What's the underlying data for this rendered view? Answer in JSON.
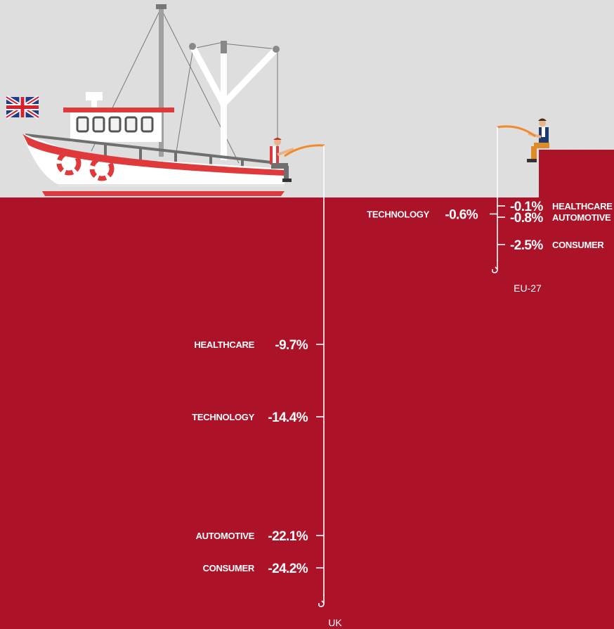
{
  "colors": {
    "sea": "#ad1328",
    "sky": "#dedede",
    "line": "#ffffff",
    "rod": "#f08a2c"
  },
  "chart_data": {
    "type": "dot-line",
    "series": [
      {
        "name": "UK",
        "points": [
          {
            "category": "HEALTHCARE",
            "value": -9.7,
            "label": "-9.7%"
          },
          {
            "category": "TECHNOLOGY",
            "value": -14.4,
            "label": "-14.4%"
          },
          {
            "category": "AUTOMOTIVE",
            "value": -22.1,
            "label": "-22.1%"
          },
          {
            "category": "CONSUMER",
            "value": -24.2,
            "label": "-24.2%"
          }
        ]
      },
      {
        "name": "EU-27",
        "points": [
          {
            "category": "HEALTHCARE",
            "value": -0.1,
            "label": "-0.1%"
          },
          {
            "category": "TECHNOLOGY",
            "value": -0.6,
            "label": "-0.6%"
          },
          {
            "category": "AUTOMOTIVE",
            "value": -0.8,
            "label": "-0.8%"
          },
          {
            "category": "CONSUMER",
            "value": -2.5,
            "label": "-2.5%"
          }
        ]
      }
    ]
  },
  "icons": [
    "uk-flag-icon",
    "fishing-boat-icon",
    "fisherman-icon",
    "fishing-hook-icon"
  ]
}
